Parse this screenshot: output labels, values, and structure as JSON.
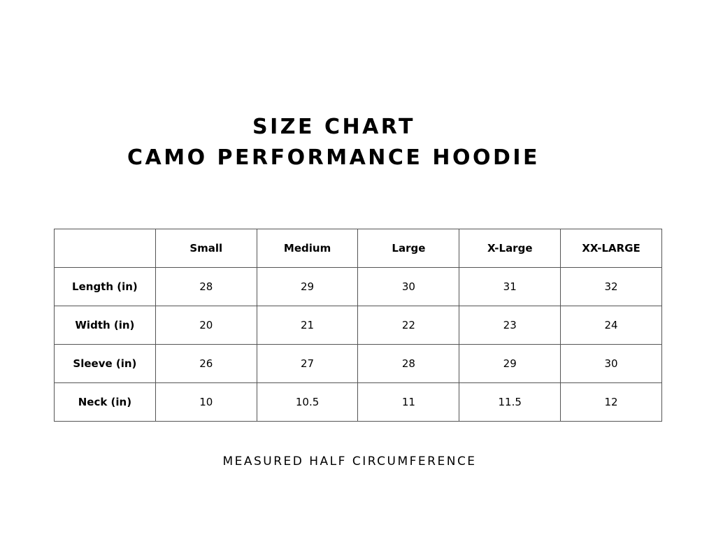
{
  "title": {
    "line1": "SIZE CHART",
    "line2": "CAMO PERFORMANCE HOODIE"
  },
  "table": {
    "corner": "",
    "columns": [
      "Small",
      "Medium",
      "Large",
      "X-Large",
      "XX-LARGE"
    ],
    "rows": [
      {
        "label": "Length (in)",
        "values": [
          "28",
          "29",
          "30",
          "31",
          "32"
        ]
      },
      {
        "label": "Width (in)",
        "values": [
          "20",
          "21",
          "22",
          "23",
          "24"
        ]
      },
      {
        "label": "Sleeve (in)",
        "values": [
          "26",
          "27",
          "28",
          "29",
          "30"
        ]
      },
      {
        "label": "Neck (in)",
        "values": [
          "10",
          "10.5",
          "11",
          "11.5",
          "12"
        ]
      }
    ]
  },
  "footnote": "MEASURED HALF CIRCUMFERENCE",
  "colors": {
    "text": "#000000",
    "border": "#555555",
    "background": "#ffffff"
  }
}
